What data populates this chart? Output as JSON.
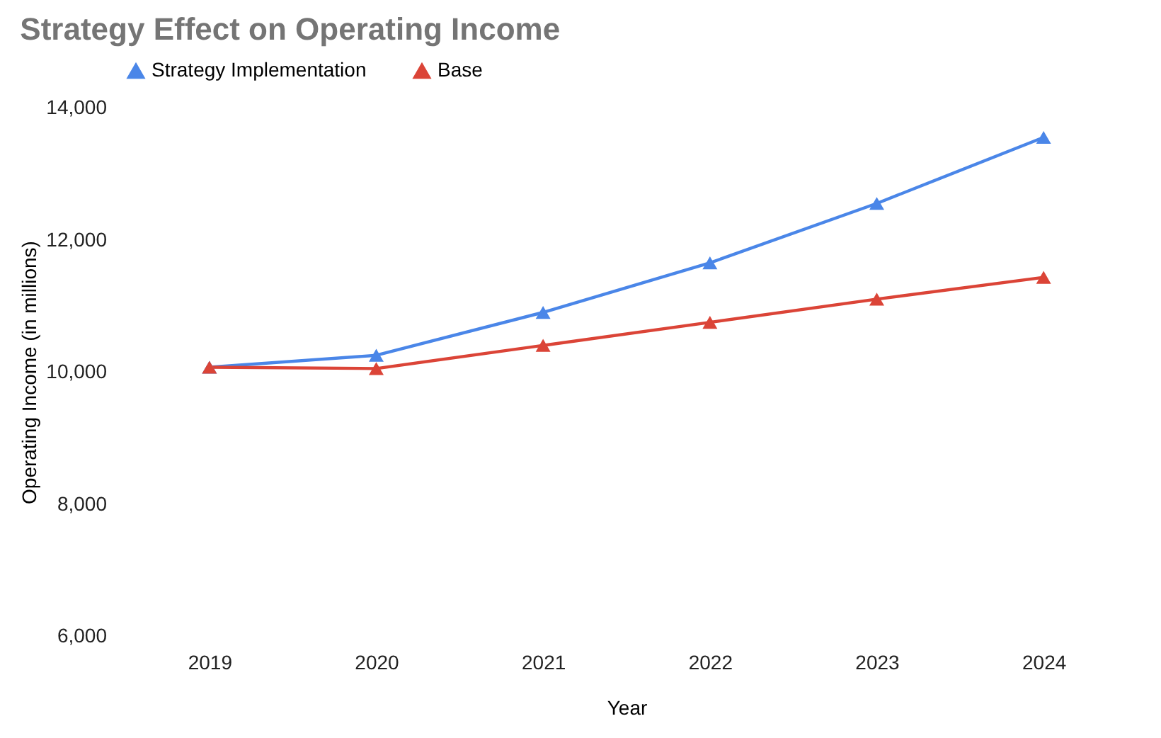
{
  "chart_data": {
    "type": "line",
    "title": "Strategy Effect on Operating Income",
    "xlabel": "Year",
    "ylabel": "Operating Income (in millions)",
    "categories": [
      "2019",
      "2020",
      "2021",
      "2022",
      "2023",
      "2024"
    ],
    "series": [
      {
        "name": "Strategy Implementation",
        "color": "#4a86e8",
        "values": [
          10070,
          10250,
          10900,
          11650,
          12550,
          13550
        ]
      },
      {
        "name": "Base",
        "color": "#db4437",
        "values": [
          10070,
          10050,
          10400,
          10750,
          11100,
          11430
        ]
      }
    ],
    "ylim": [
      6000,
      14000
    ],
    "yticks": [
      {
        "value": 6000,
        "label": "6,000"
      },
      {
        "value": 8000,
        "label": "8,000"
      },
      {
        "value": 10000,
        "label": "10,000"
      },
      {
        "value": 12000,
        "label": "12,000"
      },
      {
        "value": 14000,
        "label": "14,000"
      }
    ],
    "grid": false,
    "legend": "top",
    "marker": "triangle",
    "line_style": "solid"
  }
}
